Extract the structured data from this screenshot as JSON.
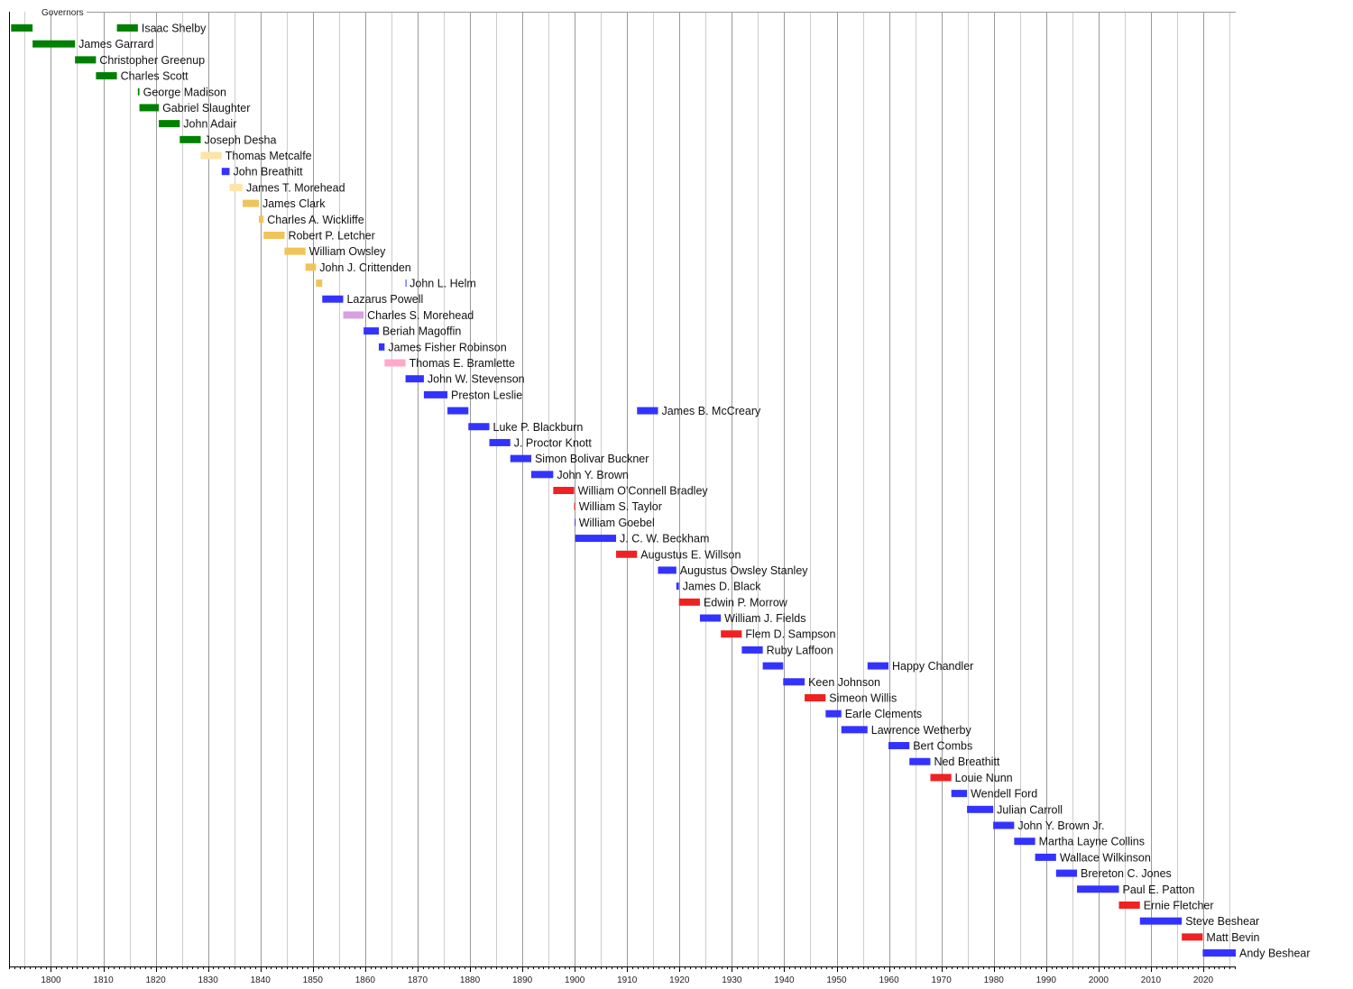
{
  "chart_data": {
    "type": "timeline",
    "title": "Governors",
    "xlim": [
      1792,
      2026.2
    ],
    "grid": true,
    "x_ticks": [
      1800,
      1810,
      1820,
      1830,
      1840,
      1850,
      1860,
      1870,
      1880,
      1890,
      1900,
      1910,
      1920,
      1930,
      1940,
      1950,
      1960,
      1970,
      1980,
      1990,
      2000,
      2010,
      2020
    ],
    "colors": {
      "green": "#008000",
      "lightyellow": "#FFE4A8",
      "gold": "#F0C458",
      "blue": "#3333FF",
      "lilac": "#D8A0E0",
      "pink": "#FFA8C8",
      "red": "#EE2222"
    },
    "rows": [
      {
        "name": "Isaac Shelby",
        "terms": [
          [
            1792.4,
            1796.5,
            "green"
          ],
          [
            1812.6,
            1816.6,
            "green"
          ]
        ]
      },
      {
        "name": "James Garrard",
        "terms": [
          [
            1796.5,
            1804.6,
            "green"
          ]
        ]
      },
      {
        "name": "Christopher Greenup",
        "terms": [
          [
            1804.6,
            1808.6,
            "green"
          ]
        ]
      },
      {
        "name": "Charles Scott",
        "terms": [
          [
            1808.6,
            1812.6,
            "green"
          ]
        ]
      },
      {
        "name": "George Madison",
        "terms": [
          [
            1816.6,
            1816.9,
            "green"
          ]
        ]
      },
      {
        "name": "Gabriel Slaughter",
        "terms": [
          [
            1816.9,
            1820.6,
            "green"
          ]
        ]
      },
      {
        "name": "John Adair",
        "terms": [
          [
            1820.6,
            1824.6,
            "green"
          ]
        ]
      },
      {
        "name": "Joseph Desha",
        "terms": [
          [
            1824.6,
            1828.6,
            "green"
          ]
        ]
      },
      {
        "name": "Thomas Metcalfe",
        "terms": [
          [
            1828.6,
            1832.6,
            "lightyellow"
          ]
        ]
      },
      {
        "name": "John Breathitt",
        "terms": [
          [
            1832.6,
            1834.1,
            "blue"
          ]
        ]
      },
      {
        "name": "James T. Morehead",
        "terms": [
          [
            1834.1,
            1836.6,
            "lightyellow"
          ]
        ]
      },
      {
        "name": "James Clark",
        "terms": [
          [
            1836.6,
            1839.7,
            "gold"
          ]
        ]
      },
      {
        "name": "Charles A. Wickliffe",
        "terms": [
          [
            1839.7,
            1840.6,
            "gold"
          ]
        ]
      },
      {
        "name": "Robert P. Letcher",
        "terms": [
          [
            1840.6,
            1844.6,
            "gold"
          ]
        ]
      },
      {
        "name": "William Owsley",
        "terms": [
          [
            1844.6,
            1848.6,
            "gold"
          ]
        ]
      },
      {
        "name": "John J. Crittenden",
        "terms": [
          [
            1848.6,
            1850.6,
            "gold"
          ]
        ]
      },
      {
        "name": "John L. Helm",
        "terms": [
          [
            1850.6,
            1851.8,
            "gold"
          ],
          [
            1867.7,
            1867.8,
            "blue"
          ]
        ]
      },
      {
        "name": "Lazarus Powell",
        "terms": [
          [
            1851.8,
            1855.8,
            "blue"
          ]
        ]
      },
      {
        "name": "Charles S. Morehead",
        "terms": [
          [
            1855.8,
            1859.7,
            "lilac"
          ]
        ]
      },
      {
        "name": "Beriah Magoffin",
        "terms": [
          [
            1859.7,
            1862.6,
            "blue"
          ]
        ]
      },
      {
        "name": "James Fisher Robinson",
        "terms": [
          [
            1862.6,
            1863.7,
            "blue"
          ]
        ]
      },
      {
        "name": "Thomas E. Bramlette",
        "terms": [
          [
            1863.7,
            1867.7,
            "pink"
          ]
        ]
      },
      {
        "name": "John W. Stevenson",
        "terms": [
          [
            1867.7,
            1871.2,
            "blue"
          ]
        ]
      },
      {
        "name": "Preston Leslie",
        "terms": [
          [
            1871.2,
            1875.7,
            "blue"
          ]
        ]
      },
      {
        "name": "James B. McCreary",
        "terms": [
          [
            1875.7,
            1879.7,
            "blue"
          ],
          [
            1911.9,
            1915.9,
            "blue"
          ]
        ]
      },
      {
        "name": "Luke P. Blackburn",
        "terms": [
          [
            1879.7,
            1883.7,
            "blue"
          ]
        ]
      },
      {
        "name": "J. Proctor Knott",
        "terms": [
          [
            1883.7,
            1887.7,
            "blue"
          ]
        ]
      },
      {
        "name": "Simon Bolivar Buckner",
        "terms": [
          [
            1887.7,
            1891.7,
            "blue"
          ]
        ]
      },
      {
        "name": "John Y. Brown",
        "terms": [
          [
            1891.7,
            1895.9,
            "blue"
          ]
        ]
      },
      {
        "name": "William O'Connell Bradley",
        "terms": [
          [
            1895.9,
            1899.9,
            "red"
          ]
        ]
      },
      {
        "name": "William S. Taylor",
        "terms": [
          [
            1899.9,
            1900.1,
            "red"
          ]
        ]
      },
      {
        "name": "William Goebel",
        "terms": [
          [
            1900.0,
            1900.1,
            "blue"
          ]
        ]
      },
      {
        "name": "J. C. W. Beckham",
        "terms": [
          [
            1900.1,
            1907.9,
            "blue"
          ]
        ]
      },
      {
        "name": "Augustus E. Willson",
        "terms": [
          [
            1907.9,
            1911.9,
            "red"
          ]
        ]
      },
      {
        "name": "Augustus Owsley Stanley",
        "terms": [
          [
            1915.9,
            1919.4,
            "blue"
          ]
        ]
      },
      {
        "name": "James D. Black",
        "terms": [
          [
            1919.4,
            1919.9,
            "blue"
          ]
        ]
      },
      {
        "name": "Edwin P. Morrow",
        "terms": [
          [
            1919.9,
            1923.9,
            "red"
          ]
        ]
      },
      {
        "name": "William J. Fields",
        "terms": [
          [
            1923.9,
            1927.9,
            "blue"
          ]
        ]
      },
      {
        "name": "Flem D. Sampson",
        "terms": [
          [
            1927.9,
            1931.9,
            "red"
          ]
        ]
      },
      {
        "name": "Ruby Laffoon",
        "terms": [
          [
            1931.9,
            1935.9,
            "blue"
          ]
        ]
      },
      {
        "name": "Happy Chandler",
        "terms": [
          [
            1935.9,
            1939.8,
            "blue"
          ],
          [
            1955.9,
            1959.9,
            "blue"
          ]
        ]
      },
      {
        "name": "Keen Johnson",
        "terms": [
          [
            1939.8,
            1943.9,
            "blue"
          ]
        ]
      },
      {
        "name": "Simeon Willis",
        "terms": [
          [
            1943.9,
            1947.9,
            "red"
          ]
        ]
      },
      {
        "name": "Earle Clements",
        "terms": [
          [
            1947.9,
            1950.9,
            "blue"
          ]
        ]
      },
      {
        "name": "Lawrence Wetherby",
        "terms": [
          [
            1950.9,
            1955.9,
            "blue"
          ]
        ]
      },
      {
        "name": "Bert Combs",
        "terms": [
          [
            1959.9,
            1963.9,
            "blue"
          ]
        ]
      },
      {
        "name": "Ned Breathitt",
        "terms": [
          [
            1963.9,
            1967.9,
            "blue"
          ]
        ]
      },
      {
        "name": "Louie Nunn",
        "terms": [
          [
            1967.9,
            1971.9,
            "red"
          ]
        ]
      },
      {
        "name": "Wendell Ford",
        "terms": [
          [
            1971.9,
            1974.9,
            "blue"
          ]
        ]
      },
      {
        "name": "Julian Carroll",
        "terms": [
          [
            1974.9,
            1979.9,
            "blue"
          ]
        ]
      },
      {
        "name": "John Y. Brown Jr.",
        "terms": [
          [
            1979.9,
            1983.9,
            "blue"
          ]
        ]
      },
      {
        "name": "Martha Layne Collins",
        "terms": [
          [
            1983.9,
            1987.9,
            "blue"
          ]
        ]
      },
      {
        "name": "Wallace Wilkinson",
        "terms": [
          [
            1987.9,
            1991.9,
            "blue"
          ]
        ]
      },
      {
        "name": "Brereton C. Jones",
        "terms": [
          [
            1991.9,
            1995.9,
            "blue"
          ]
        ]
      },
      {
        "name": "Paul E. Patton",
        "terms": [
          [
            1995.9,
            2003.9,
            "blue"
          ]
        ]
      },
      {
        "name": "Ernie Fletcher",
        "terms": [
          [
            2003.9,
            2007.9,
            "red"
          ]
        ]
      },
      {
        "name": "Steve Beshear",
        "terms": [
          [
            2007.9,
            2015.9,
            "blue"
          ]
        ]
      },
      {
        "name": "Matt Bevin",
        "terms": [
          [
            2015.9,
            2019.9,
            "red"
          ]
        ]
      },
      {
        "name": "Andy Beshear",
        "terms": [
          [
            2019.9,
            2026.2,
            "blue"
          ]
        ]
      }
    ]
  }
}
